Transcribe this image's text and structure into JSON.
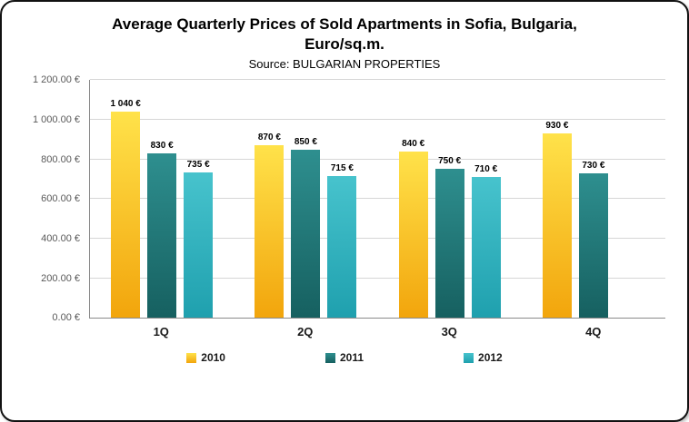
{
  "chart_data": {
    "type": "bar",
    "title": "Average Quarterly Prices of Sold Apartments in Sofia, Bulgaria, Euro/sq.m.",
    "subtitle": "Source: BULGARIAN PROPERTIES",
    "categories": [
      "1Q",
      "2Q",
      "3Q",
      "4Q"
    ],
    "series": [
      {
        "name": "2010",
        "values": [
          1040,
          870,
          840,
          930
        ],
        "labels": [
          "1 040 €",
          "870 €",
          "840 €",
          "930 €"
        ],
        "color_top": "#FFE24A",
        "color_bottom": "#F2A50C"
      },
      {
        "name": "2011",
        "values": [
          830,
          850,
          750,
          730
        ],
        "labels": [
          "830 €",
          "850 €",
          "750 €",
          "730 €"
        ],
        "color_top": "#2E8F8F",
        "color_bottom": "#166060"
      },
      {
        "name": "2012",
        "values": [
          735,
          715,
          710,
          null
        ],
        "labels": [
          "735 €",
          "715 €",
          "710 €",
          null
        ],
        "color_top": "#47C3CD",
        "color_bottom": "#1FA0AE"
      }
    ],
    "yticks": [
      {
        "value": 0,
        "label": "0.00 €"
      },
      {
        "value": 200,
        "label": "200.00 €"
      },
      {
        "value": 400,
        "label": "400.00 €"
      },
      {
        "value": 600,
        "label": "600.00 €"
      },
      {
        "value": 800,
        "label": "800.00 €"
      },
      {
        "value": 1000,
        "label": "1 000.00 €"
      },
      {
        "value": 1200,
        "label": "1 200.00 €"
      }
    ],
    "ylim": [
      0,
      1200
    ],
    "xlabel": "",
    "ylabel": "",
    "grid": "horizontal",
    "legend_position": "bottom"
  }
}
